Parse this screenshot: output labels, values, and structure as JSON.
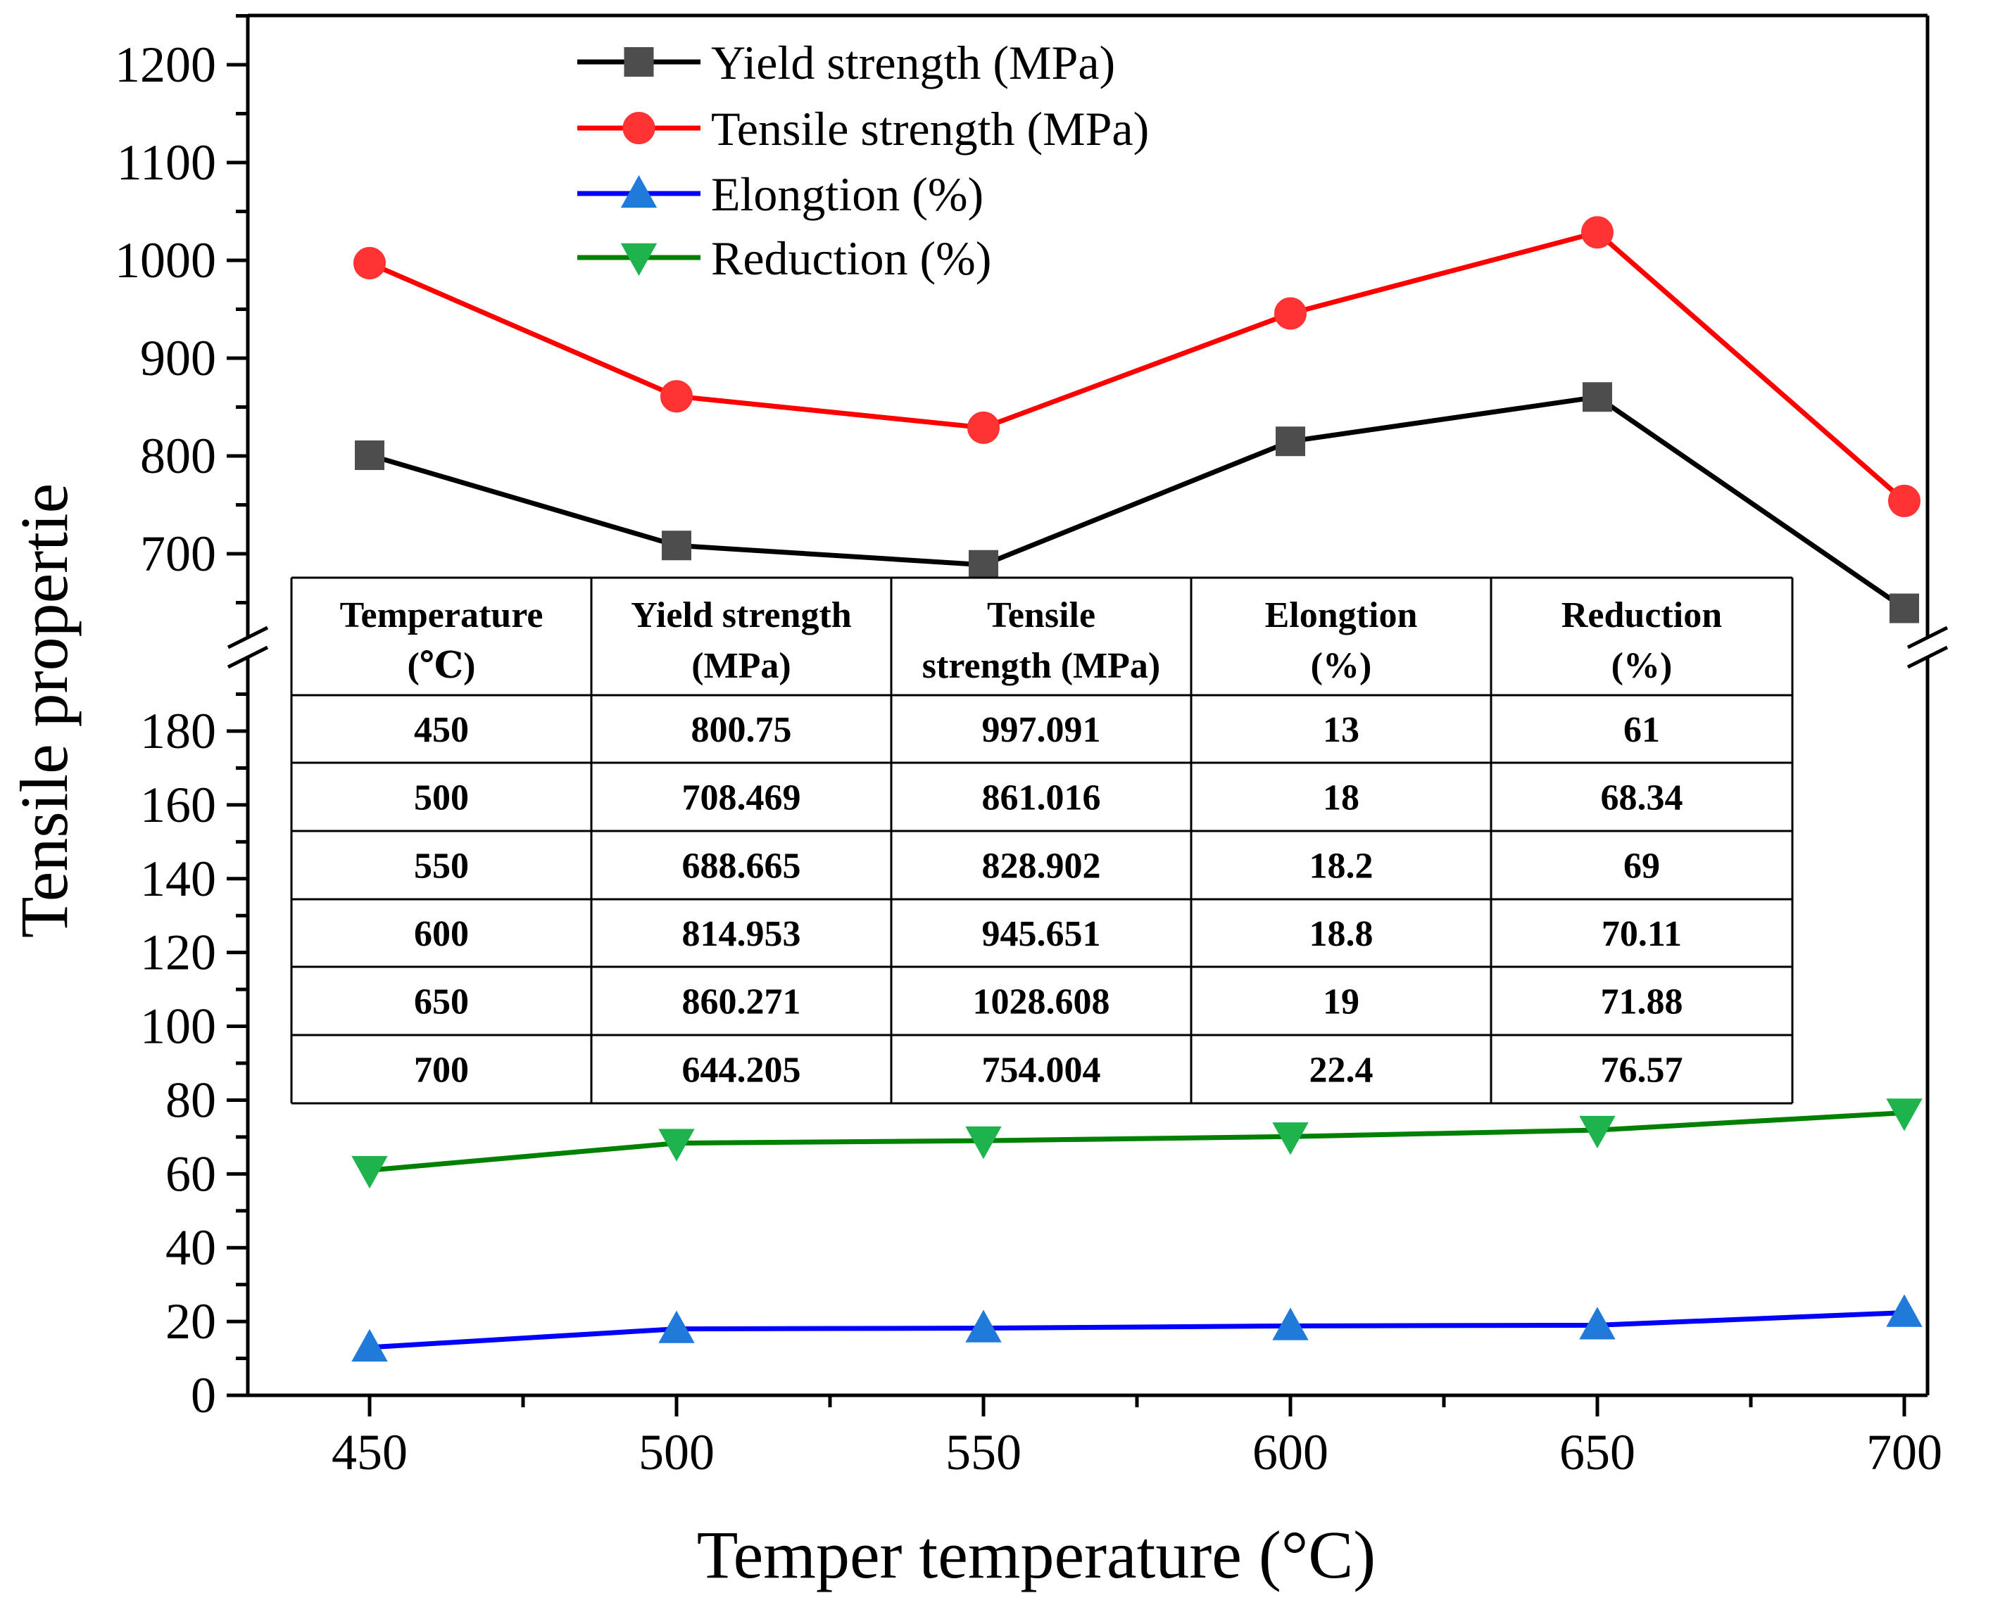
{
  "chart_data": {
    "type": "line",
    "title": "",
    "xlabel": "Temper temperature (°C)",
    "ylabel": "Tensile propertie",
    "x": [
      450,
      500,
      550,
      600,
      650,
      700
    ],
    "xlim": [
      430,
      705
    ],
    "xticks": [
      "450",
      "500",
      "550",
      "600",
      "650",
      "700"
    ],
    "y_upper_range": [
      600,
      1230
    ],
    "y_upper_ticks": [
      "700",
      "800",
      "900",
      "1000",
      "1100",
      "1200"
    ],
    "y_lower_range": [
      0,
      200
    ],
    "y_lower_ticks": [
      "0",
      "20",
      "40",
      "60",
      "80",
      "100",
      "120",
      "140",
      "160",
      "180"
    ],
    "axis_break": "between 200 and 600",
    "legend_position": "top-left",
    "series": [
      {
        "name": "Yield strength (MPa)",
        "color": "#000000",
        "marker": "square",
        "marker_color": "#4d4d4d",
        "axis": "upper",
        "values": [
          800.75,
          708.469,
          688.665,
          814.953,
          860.271,
          644.205
        ]
      },
      {
        "name": "Tensile strength (MPa)",
        "color": "#ff0000",
        "marker": "circle",
        "marker_color": "#ff3333",
        "axis": "upper",
        "values": [
          997.091,
          861.016,
          828.902,
          945.651,
          1028.608,
          754.004
        ]
      },
      {
        "name": "Elongtion (%)",
        "color": "#0000ff",
        "marker": "triangle-up",
        "marker_color": "#1f7ad9",
        "axis": "lower",
        "values": [
          13,
          18,
          18.2,
          18.8,
          19,
          22.4
        ]
      },
      {
        "name": "Reduction (%)",
        "color": "#008000",
        "marker": "triangle-down",
        "marker_color": "#1fb34d",
        "axis": "lower",
        "values": [
          61,
          68.34,
          69,
          70.11,
          71.88,
          76.57
        ]
      }
    ],
    "table": {
      "headers": [
        [
          "Temperature",
          "(℃)"
        ],
        [
          "Yield strength",
          "(MPa)"
        ],
        [
          "Tensile",
          "strength (MPa)"
        ],
        [
          "Elongtion",
          "(%)"
        ],
        [
          "Reduction",
          "(%)"
        ]
      ],
      "rows": [
        [
          "450",
          "800.75",
          "997.091",
          "13",
          "61"
        ],
        [
          "500",
          "708.469",
          "861.016",
          "18",
          "68.34"
        ],
        [
          "550",
          "688.665",
          "828.902",
          "18.2",
          "69"
        ],
        [
          "600",
          "814.953",
          "945.651",
          "18.8",
          "70.11"
        ],
        [
          "650",
          "860.271",
          "1028.608",
          "19",
          "71.88"
        ],
        [
          "700",
          "644.205",
          "754.004",
          "22.4",
          "76.57"
        ]
      ]
    }
  }
}
